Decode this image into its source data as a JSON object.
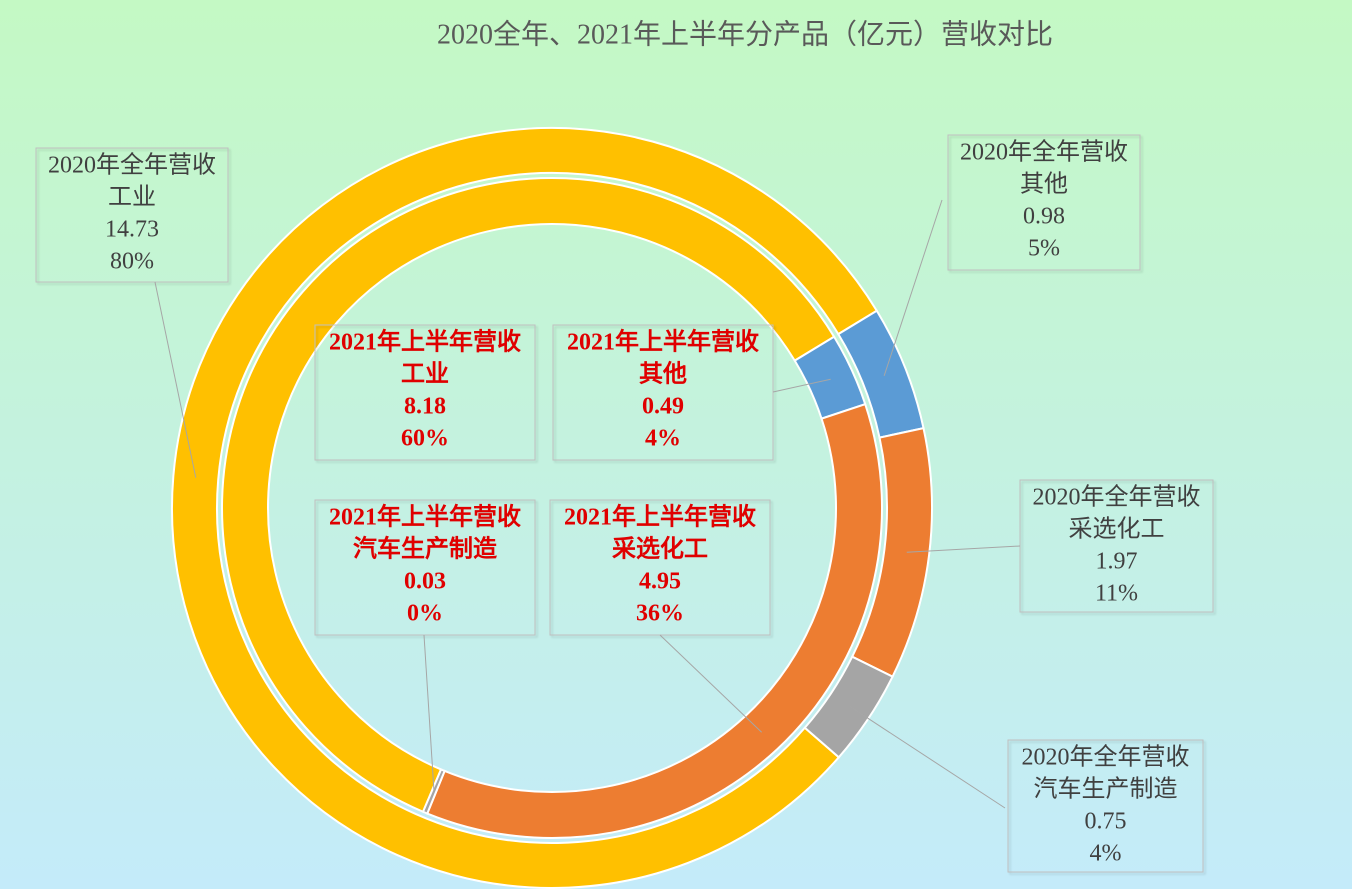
{
  "chart_data": {
    "type": "doughnut",
    "title": "2020全年、2021年上半年分产品（亿元）营收对比",
    "categories": [
      "工业",
      "其他",
      "采选化工",
      "汽车生产制造"
    ],
    "colors": [
      "#ffc000",
      "#5b9bd5",
      "#ed7d31",
      "#a5a5a5"
    ],
    "series": [
      {
        "name": "2020年全年营收",
        "values": [
          14.73,
          0.98,
          1.97,
          0.75
        ],
        "percent_labels": [
          "80%",
          "5%",
          "11%",
          "4%"
        ]
      },
      {
        "name": "2021年上半年营收",
        "values": [
          8.18,
          0.49,
          4.95,
          0.03
        ],
        "percent_labels": [
          "60%",
          "4%",
          "36%",
          "0%"
        ]
      }
    ]
  }
}
